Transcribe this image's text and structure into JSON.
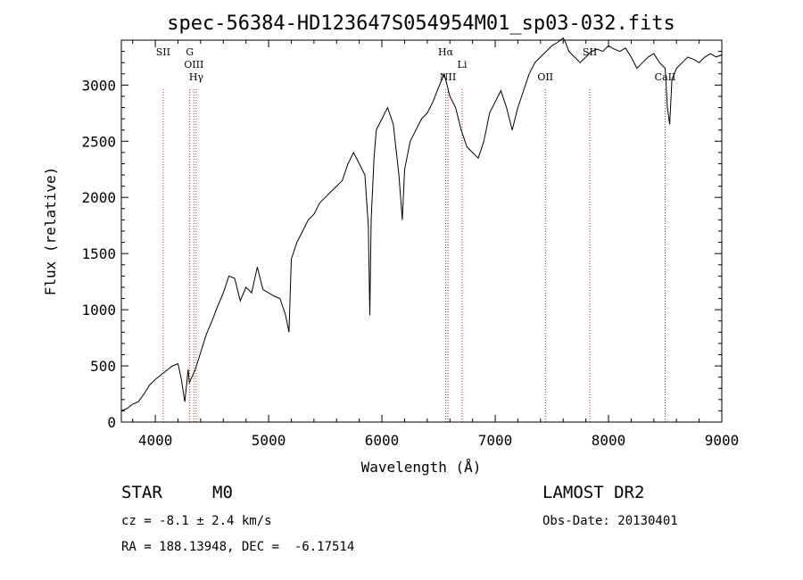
{
  "chart_data": {
    "type": "line",
    "title": "spec-56384-HD123647S054954M01_sp03-032.fits",
    "xlabel": "Wavelength (Å)",
    "ylabel": "Flux (relative)",
    "xlim": [
      3700,
      9000
    ],
    "ylim": [
      0,
      3400
    ],
    "x_ticks": [
      4000,
      5000,
      6000,
      7000,
      8000,
      9000
    ],
    "y_ticks": [
      0,
      500,
      1000,
      1500,
      2000,
      2500,
      3000
    ],
    "grid": false,
    "series": [
      {
        "x": [
          3700,
          3750,
          3800,
          3850,
          3900,
          3950,
          4000,
          4050,
          4100,
          4150,
          4200,
          4230,
          4260,
          4290,
          4300,
          4350,
          4400,
          4450,
          4500,
          4550,
          4600,
          4650,
          4700,
          4750,
          4800,
          4850,
          4900,
          4950,
          5000,
          5050,
          5100,
          5150,
          5180,
          5200,
          5250,
          5300,
          5350,
          5400,
          5450,
          5500,
          5550,
          5600,
          5650,
          5700,
          5750,
          5800,
          5850,
          5880,
          5893,
          5905,
          5930,
          5950,
          6000,
          6050,
          6100,
          6150,
          6180,
          6200,
          6250,
          6300,
          6350,
          6400,
          6450,
          6500,
          6550,
          6600,
          6650,
          6700,
          6750,
          6800,
          6850,
          6900,
          6950,
          7000,
          7050,
          7100,
          7150,
          7200,
          7250,
          7300,
          7350,
          7400,
          7450,
          7500,
          7550,
          7600,
          7620,
          7650,
          7700,
          7750,
          7800,
          7850,
          7900,
          7950,
          8000,
          8050,
          8100,
          8150,
          8200,
          8250,
          8300,
          8350,
          8400,
          8450,
          8500,
          8520,
          8540,
          8560,
          8600,
          8650,
          8700,
          8750,
          8800,
          8850,
          8900,
          8950,
          9000
        ],
        "y": [
          100,
          120,
          160,
          180,
          250,
          330,
          380,
          420,
          460,
          500,
          520,
          380,
          180,
          470,
          350,
          460,
          620,
          780,
          900,
          1030,
          1150,
          1300,
          1280,
          1080,
          1200,
          1150,
          1380,
          1180,
          1150,
          1120,
          1100,
          950,
          800,
          1450,
          1600,
          1700,
          1800,
          1850,
          1950,
          2000,
          2050,
          2100,
          2150,
          2300,
          2400,
          2300,
          2200,
          1750,
          950,
          1800,
          2350,
          2600,
          2700,
          2800,
          2650,
          2200,
          1800,
          2250,
          2500,
          2600,
          2700,
          2750,
          2850,
          2980,
          3100,
          2900,
          2800,
          2600,
          2450,
          2400,
          2350,
          2500,
          2750,
          2850,
          2950,
          2800,
          2600,
          2800,
          2950,
          3100,
          3200,
          3250,
          3300,
          3350,
          3380,
          3420,
          3380,
          3300,
          3250,
          3200,
          3250,
          3300,
          3320,
          3300,
          3350,
          3320,
          3300,
          3330,
          3250,
          3150,
          3200,
          3250,
          3280,
          3200,
          3150,
          2800,
          2650,
          3050,
          3150,
          3200,
          3250,
          3230,
          3200,
          3250,
          3280,
          3250,
          3270
        ]
      }
    ],
    "spectral_lines": [
      {
        "label": "SII",
        "wavelength": 4069
      },
      {
        "label": "G",
        "wavelength": 4304
      },
      {
        "label": "OIII",
        "wavelength": 4340
      },
      {
        "label": "Hγ",
        "wavelength": 4361
      },
      {
        "label": "Hα",
        "wavelength": 6563
      },
      {
        "label": "NII",
        "wavelength": 6583
      },
      {
        "label": "Li",
        "wavelength": 6708
      },
      {
        "label": "OII",
        "wavelength": 7443
      },
      {
        "label": "SII",
        "wavelength": 7835
      },
      {
        "label": "CaII",
        "wavelength": 8500
      }
    ],
    "line_color": "#000000",
    "marker_color": "#d02020"
  },
  "info": {
    "object_type": "STAR",
    "subclass": "M0",
    "survey": "LAMOST DR2",
    "cz": "cz = -8.1 ± 2.4 km/s",
    "obs_date": "Obs-Date: 20130401",
    "coords": "RA = 188.13948, DEC =  -6.17514"
  }
}
